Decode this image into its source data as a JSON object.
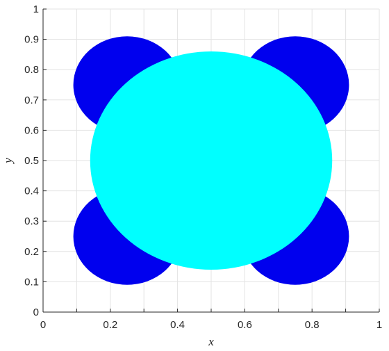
{
  "chart_data": {
    "type": "scatter",
    "title": "",
    "xlabel": "x",
    "ylabel": "y",
    "xlim": [
      0,
      1
    ],
    "ylim": [
      0,
      1
    ],
    "xticks": [
      0,
      0.1,
      0.2,
      0.3,
      0.4,
      0.5,
      0.6,
      0.7,
      0.8,
      0.9,
      1
    ],
    "yticks": [
      0,
      0.1,
      0.2,
      0.3,
      0.4,
      0.5,
      0.6,
      0.7,
      0.8,
      0.9,
      1
    ],
    "xtick_labels": [
      "0",
      "0.2",
      "0.4",
      "0.6",
      "0.8",
      "1"
    ],
    "xtick_label_values": [
      0,
      0.2,
      0.4,
      0.6,
      0.8,
      1
    ],
    "ytick_labels": [
      "0",
      "0.1",
      "0.2",
      "0.3",
      "0.4",
      "0.5",
      "0.6",
      "0.7",
      "0.8",
      "0.9",
      "1"
    ],
    "grid": true,
    "series": [
      {
        "color": "#0000ee",
        "shape": "circle",
        "points": [
          {
            "x": 0.25,
            "y": 0.75,
            "r": 0.16
          },
          {
            "x": 0.75,
            "y": 0.75,
            "r": 0.16
          },
          {
            "x": 0.25,
            "y": 0.25,
            "r": 0.16
          },
          {
            "x": 0.75,
            "y": 0.25,
            "r": 0.16
          }
        ]
      },
      {
        "color": "#00ffff",
        "shape": "circle",
        "points": [
          {
            "x": 0.5,
            "y": 0.5,
            "r": 0.36
          }
        ]
      }
    ]
  }
}
